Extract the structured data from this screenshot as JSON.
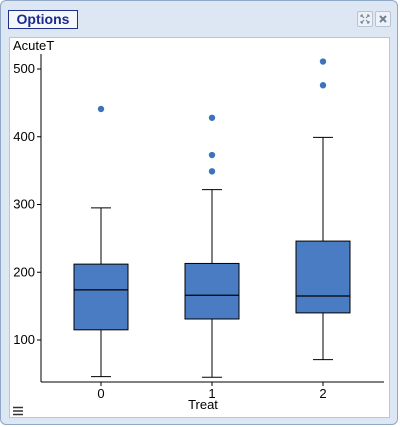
{
  "window": {
    "options_label": "Options",
    "buttons": [
      {
        "name": "maximize-icon"
      },
      {
        "name": "close-icon"
      }
    ]
  },
  "colors": {
    "box_fill": "#4a7cc4",
    "outlier": "#3d73bd",
    "axis": "#000000",
    "frame": "#dde7f3"
  },
  "chart_data": {
    "type": "box",
    "ylabel": "AcuteT",
    "xlabel": "Treat",
    "categories": [
      "0",
      "1",
      "2"
    ],
    "y_ticks": [
      100,
      200,
      300,
      400,
      500
    ],
    "ylim": [
      40,
      520
    ],
    "boxes": [
      {
        "category": "0",
        "whisker_low": 46,
        "q1": 115,
        "median": 174,
        "q3": 212,
        "whisker_high": 295,
        "outliers": [
          441
        ]
      },
      {
        "category": "1",
        "whisker_low": 45,
        "q1": 131,
        "median": 166,
        "q3": 213,
        "whisker_high": 322,
        "outliers": [
          349,
          373,
          428
        ]
      },
      {
        "category": "2",
        "whisker_low": 71,
        "q1": 140,
        "median": 165,
        "q3": 246,
        "whisker_high": 399,
        "outliers": [
          476,
          511
        ]
      }
    ]
  }
}
